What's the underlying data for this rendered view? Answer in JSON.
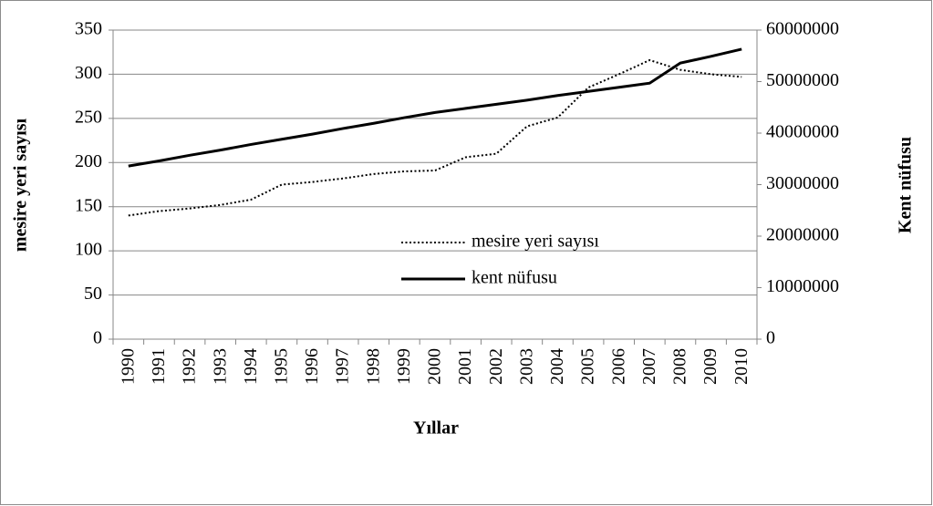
{
  "chart_data": {
    "type": "line",
    "x_label": "Yıllar",
    "y_label": "mesire yeri sayısı",
    "y2_label": "Kent nüfusu",
    "categories": [
      "1990",
      "1991",
      "1992",
      "1993",
      "1994",
      "1995",
      "1996",
      "1997",
      "1998",
      "1999",
      "2000",
      "2001",
      "2002",
      "2003",
      "2004",
      "2005",
      "2006",
      "2007",
      "2008",
      "2009",
      "2010"
    ],
    "series": [
      {
        "name": "mesire yeri sayısı",
        "color": "#000000",
        "style": "dotted",
        "axis": "y",
        "values": [
          140,
          145,
          148,
          152,
          158,
          175,
          178,
          182,
          187,
          190,
          191,
          206,
          210,
          241,
          251,
          285,
          300,
          316,
          305,
          300,
          297
        ]
      },
      {
        "name": "kent nüfusu",
        "color": "#000000",
        "style": "solid",
        "axis": "y2",
        "values": [
          33600000,
          34600000,
          35700000,
          36700000,
          37800000,
          38800000,
          39800000,
          40900000,
          41900000,
          43000000,
          44000000,
          44800000,
          45600000,
          46400000,
          47300000,
          48100000,
          48900000,
          49700000,
          53600000,
          54900000,
          56300000
        ]
      }
    ],
    "ylim": [
      0,
      350
    ],
    "yticks": [
      0,
      50,
      100,
      150,
      200,
      250,
      300,
      350
    ],
    "y2lim": [
      0,
      60000000
    ],
    "y2ticks": [
      0,
      10000000,
      20000000,
      30000000,
      40000000,
      50000000,
      60000000
    ],
    "grid": true,
    "legend": "center"
  }
}
